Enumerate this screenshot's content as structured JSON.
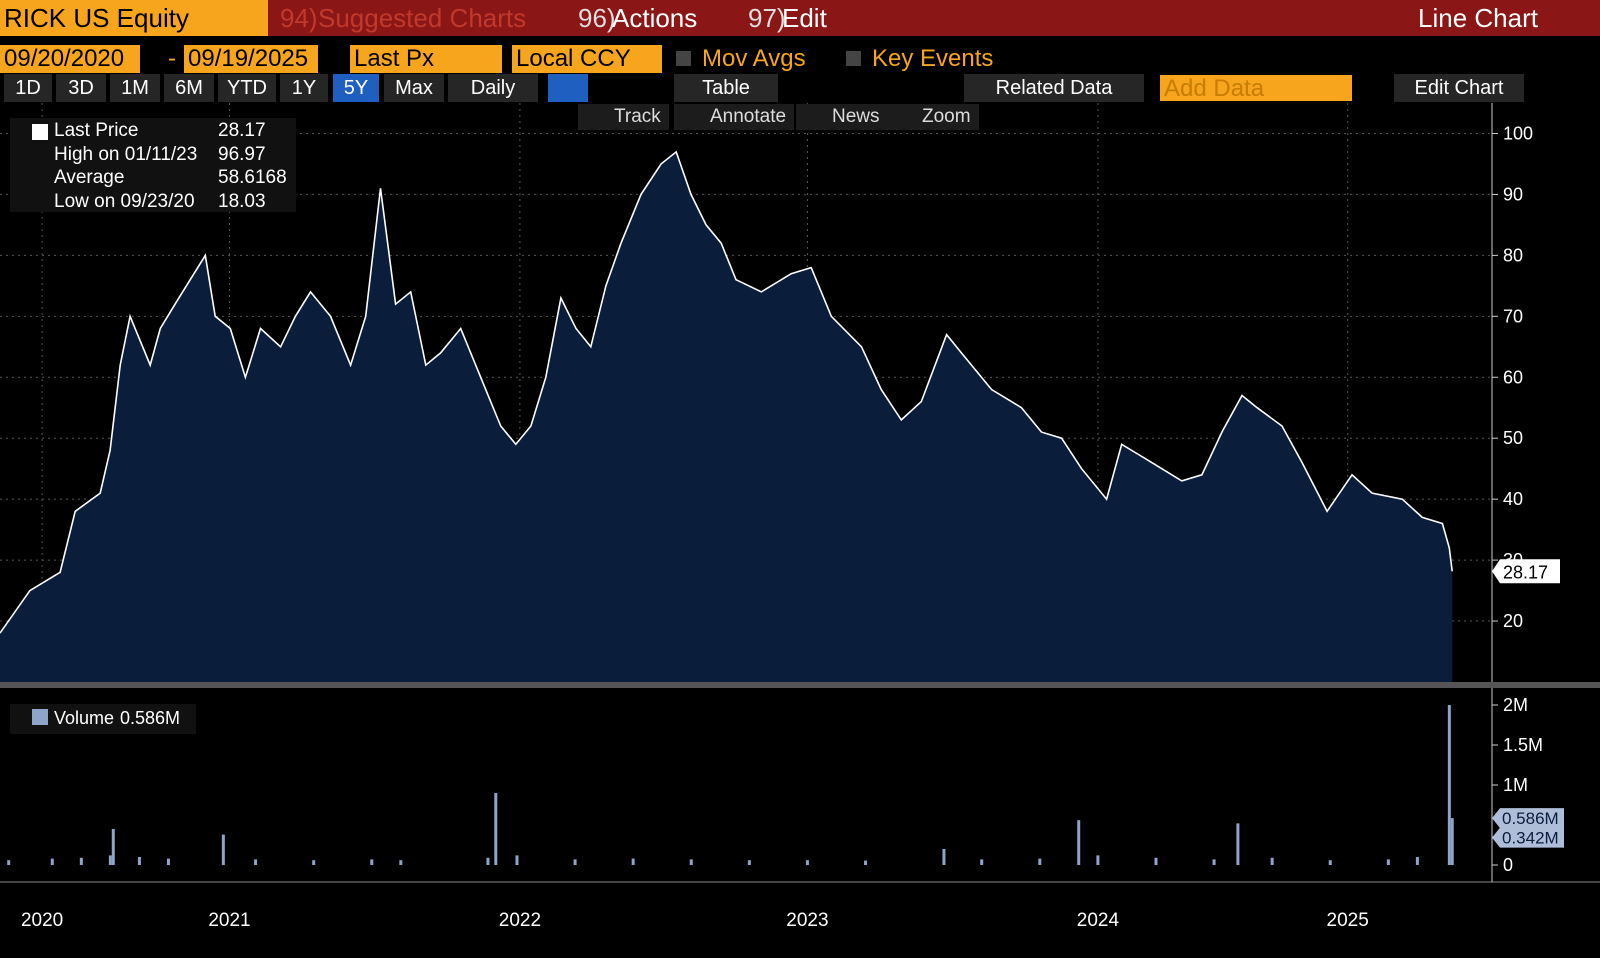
{
  "header": {
    "ticker": "RICK US Equity",
    "menu": [
      {
        "num": "94)",
        "label": "Suggested Charts"
      },
      {
        "num": "96)",
        "label": "Actions"
      },
      {
        "num": "97)",
        "label": "Edit"
      }
    ],
    "mode": "Line Chart"
  },
  "controls": {
    "start_date": "09/20/2020",
    "end_date": "09/19/2025",
    "field": "Last Px",
    "currency": "Local CCY",
    "mov_avgs": "Mov Avgs",
    "key_events": "Key Events"
  },
  "toolbar": {
    "ranges": [
      "1D",
      "3D",
      "1M",
      "6M",
      "YTD",
      "1Y",
      "5Y",
      "Max"
    ],
    "selected": "5Y",
    "frequency": "Daily",
    "table": "Table",
    "related": "Related Data",
    "add_data": "Add Data",
    "edit_chart": "Edit Chart"
  },
  "tools": [
    "Track",
    "Annotate",
    "News",
    "Zoom"
  ],
  "legend": [
    {
      "label": "Last Price",
      "value": 28.17
    },
    {
      "label": "High on 01/11/23",
      "value": 96.97
    },
    {
      "label": "Average",
      "value": 58.6168
    },
    {
      "label": "Low on 09/23/20",
      "value": 18.03
    }
  ],
  "chart_data": [
    {
      "type": "area",
      "color": "#ffffff",
      "fill": "#0a1e3c",
      "grid": true,
      "x": [
        2020.72,
        2020.823,
        2020.927,
        2020.979,
        2021.065,
        2021.099,
        2021.134,
        2021.168,
        2021.237,
        2021.272,
        2021.323,
        2021.375,
        2021.427,
        2021.461,
        2021.513,
        2021.565,
        2021.617,
        2021.686,
        2021.737,
        2021.789,
        2021.858,
        2021.927,
        2021.979,
        2022.03,
        2022.082,
        2022.134,
        2022.186,
        2022.237,
        2022.306,
        2022.375,
        2022.444,
        2022.496,
        2022.548,
        2022.599,
        2022.651,
        2022.703,
        2022.754,
        2022.806,
        2022.858,
        2022.927,
        2022.996,
        2023.048,
        2023.099,
        2023.151,
        2023.203,
        2023.254,
        2023.341,
        2023.444,
        2023.513,
        2023.582,
        2023.686,
        2023.754,
        2023.823,
        2023.892,
        2023.979,
        2024.03,
        2024.134,
        2024.237,
        2024.306,
        2024.375,
        2024.444,
        2024.53,
        2024.582,
        2024.651,
        2024.72,
        2024.789,
        2024.858,
        2024.927,
        2024.996,
        2025.048,
        2025.134,
        2025.203,
        2025.289,
        2025.375,
        2025.444,
        2025.548,
        2025.617,
        2025.686,
        2025.71,
        2025.72
      ],
      "values": [
        18.03,
        25,
        28,
        38,
        41,
        48,
        62,
        70,
        62,
        68,
        72,
        76,
        80,
        70,
        68,
        60,
        68,
        65,
        70,
        74,
        70,
        62,
        70,
        91,
        72,
        74,
        62,
        64,
        68,
        60,
        52,
        49,
        52,
        60,
        73,
        68,
        65,
        75,
        82,
        90,
        95,
        96.97,
        90,
        85,
        82,
        76,
        74,
        77,
        78,
        70,
        65,
        58,
        53,
        56,
        67,
        64,
        58,
        55,
        51,
        50,
        45,
        40,
        49,
        47,
        45,
        43,
        44,
        51,
        57,
        55,
        52,
        46,
        38,
        44,
        41,
        40,
        37,
        36,
        32,
        28.17
      ],
      "xlim": [
        2020.72,
        2025.85
      ],
      "ylim": [
        10,
        105
      ],
      "yticks": [
        20,
        30,
        40,
        50,
        60,
        70,
        80,
        90,
        100
      ],
      "xticks": [
        {
          "value": 2020.865,
          "label": "2020"
        },
        {
          "value": 2021.51,
          "label": "2021"
        },
        {
          "value": 2022.51,
          "label": "2022"
        },
        {
          "value": 2023.5,
          "label": "2023"
        },
        {
          "value": 2024.5,
          "label": "2024"
        },
        {
          "value": 2025.36,
          "label": "2025"
        }
      ],
      "last_value": 28.17
    },
    {
      "type": "bar",
      "name": "Volume",
      "color": "#8ea4c8",
      "x": [
        2020.75,
        2020.9,
        2021.0,
        2021.1,
        2021.11,
        2021.2,
        2021.3,
        2021.489,
        2021.6,
        2021.8,
        2022.0,
        2022.1,
        2022.4,
        2022.427,
        2022.5,
        2022.7,
        2022.9,
        2023.1,
        2023.3,
        2023.5,
        2023.7,
        2023.97,
        2024.1,
        2024.3,
        2024.434,
        2024.5,
        2024.7,
        2024.9,
        2024.982,
        2025.1,
        2025.3,
        2025.5,
        2025.6,
        2025.71,
        2025.72
      ],
      "values": [
        60000,
        80000,
        90000,
        120000,
        450000,
        100000,
        80000,
        380000,
        70000,
        60000,
        70000,
        60000,
        90000,
        900000,
        120000,
        70000,
        80000,
        70000,
        60000,
        60000,
        55000,
        200000,
        70000,
        80000,
        560000,
        120000,
        90000,
        70000,
        520000,
        90000,
        60000,
        70000,
        100000,
        2000000,
        586000
      ],
      "xlim": [
        2020.72,
        2025.85
      ],
      "ylim": [
        -212500,
        2212500
      ],
      "yticks": [
        {
          "value": 0,
          "label": "0"
        },
        {
          "value": 1000000,
          "label": "1M"
        },
        {
          "value": 1500000,
          "label": "1.5M"
        },
        {
          "value": 2000000,
          "label": "2M"
        }
      ],
      "last_value": 586000,
      "last_value_label": "0.586M",
      "avg_value": 342000,
      "avg_value_label": "0.342M"
    }
  ]
}
